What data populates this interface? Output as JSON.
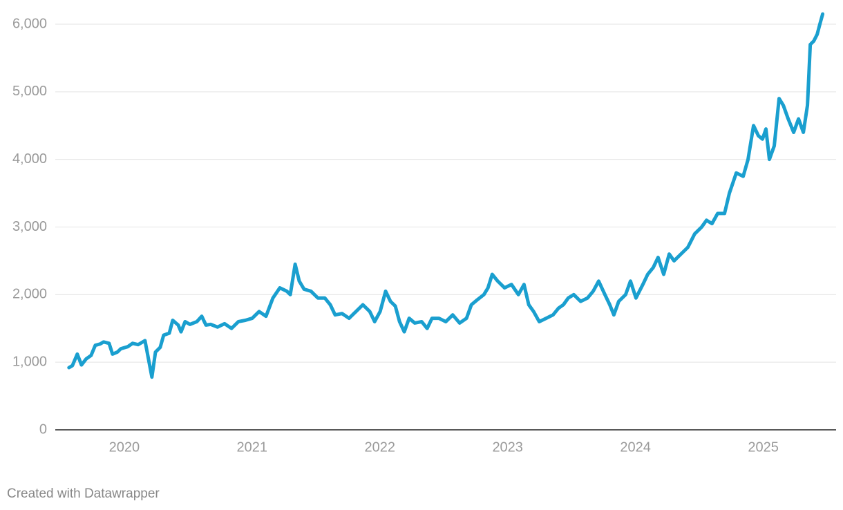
{
  "chart_data": {
    "type": "line",
    "x": [
      2019.567,
      2019.594,
      2019.632,
      2019.665,
      2019.702,
      2019.74,
      2019.773,
      2019.811,
      2019.838,
      2019.881,
      2019.908,
      2019.946,
      2019.973,
      2020.027,
      2020.065,
      2020.108,
      2020.162,
      2020.189,
      2020.216,
      2020.244,
      2020.281,
      2020.308,
      2020.352,
      2020.379,
      2020.422,
      2020.444,
      2020.476,
      2020.514,
      2020.568,
      2020.606,
      2020.639,
      2020.676,
      2020.73,
      2020.785,
      2020.839,
      2020.893,
      2020.947,
      2021.001,
      2021.055,
      2021.109,
      2021.163,
      2021.217,
      2021.272,
      2021.299,
      2021.337,
      2021.369,
      2021.407,
      2021.461,
      2021.515,
      2021.569,
      2021.612,
      2021.65,
      2021.704,
      2021.759,
      2021.813,
      2021.867,
      2021.921,
      2021.959,
      2022.002,
      2022.045,
      2022.083,
      2022.121,
      2022.154,
      2022.191,
      2022.229,
      2022.273,
      2022.327,
      2022.37,
      2022.408,
      2022.462,
      2022.516,
      2022.57,
      2022.624,
      2022.678,
      2022.716,
      2022.76,
      2022.814,
      2022.846,
      2022.879,
      2022.922,
      2022.976,
      2023.03,
      2023.084,
      2023.128,
      2023.165,
      2023.203,
      2023.247,
      2023.301,
      2023.355,
      2023.398,
      2023.436,
      2023.474,
      2023.517,
      2023.571,
      2023.625,
      2023.669,
      2023.712,
      2023.761,
      2023.799,
      2023.831,
      2023.869,
      2023.923,
      2023.961,
      2024.004,
      2024.058,
      2024.096,
      2024.139,
      2024.177,
      2024.221,
      2024.264,
      2024.302,
      2024.356,
      2024.41,
      2024.464,
      2024.518,
      2024.556,
      2024.599,
      2024.643,
      2024.697,
      2024.735,
      2024.789,
      2024.843,
      2024.881,
      2024.924,
      2024.962,
      2024.994,
      2025.021,
      2025.048,
      2025.086,
      2025.124,
      2025.157,
      2025.195,
      2025.238,
      2025.276,
      2025.314,
      2025.346,
      2025.368,
      2025.395,
      2025.422,
      2025.443,
      2025.465
    ],
    "series": [
      {
        "color": "#1a9fcf",
        "values": [
          920,
          950,
          1120,
          960,
          1050,
          1100,
          1250,
          1270,
          1300,
          1280,
          1120,
          1150,
          1200,
          1230,
          1280,
          1260,
          1320,
          1050,
          780,
          1150,
          1220,
          1400,
          1430,
          1620,
          1550,
          1450,
          1600,
          1560,
          1600,
          1680,
          1550,
          1560,
          1520,
          1570,
          1500,
          1600,
          1620,
          1650,
          1750,
          1680,
          1950,
          2100,
          2050,
          2000,
          2450,
          2200,
          2080,
          2050,
          1950,
          1950,
          1850,
          1700,
          1720,
          1650,
          1750,
          1850,
          1750,
          1600,
          1750,
          2050,
          1900,
          1830,
          1600,
          1450,
          1650,
          1580,
          1600,
          1500,
          1650,
          1650,
          1600,
          1700,
          1580,
          1650,
          1850,
          1920,
          2000,
          2100,
          2300,
          2200,
          2100,
          2150,
          2000,
          2150,
          1850,
          1750,
          1600,
          1650,
          1700,
          1800,
          1850,
          1950,
          2000,
          1900,
          1950,
          2050,
          2200,
          2000,
          1850,
          1700,
          1900,
          2000,
          2200,
          1950,
          2150,
          2300,
          2400,
          2550,
          2300,
          2600,
          2500,
          2600,
          2700,
          2900,
          3000,
          3100,
          3050,
          3200,
          3200,
          3500,
          3800,
          3750,
          4000,
          4500,
          4350,
          4300,
          4450,
          4000,
          4200,
          4900,
          4800,
          4600,
          4400,
          4600,
          4400,
          4800,
          5700,
          5750,
          5850,
          6000,
          6150
        ]
      }
    ],
    "xlim": [
      2019.46,
      2025.57
    ],
    "xticks": [
      2020,
      2021,
      2022,
      2023,
      2024,
      2025
    ],
    "ylim": [
      0,
      6000
    ],
    "yticks": [
      0,
      {
        "value": 1000,
        "label": "1,000"
      },
      {
        "value": 2000,
        "label": "2,000"
      },
      {
        "value": 3000,
        "label": "3,000"
      },
      {
        "value": 4000,
        "label": "4,000"
      },
      {
        "value": 5000,
        "label": "5,000"
      },
      {
        "value": 6000,
        "label": "6,000"
      }
    ],
    "grid": true,
    "footer": "Created with Datawrapper"
  }
}
